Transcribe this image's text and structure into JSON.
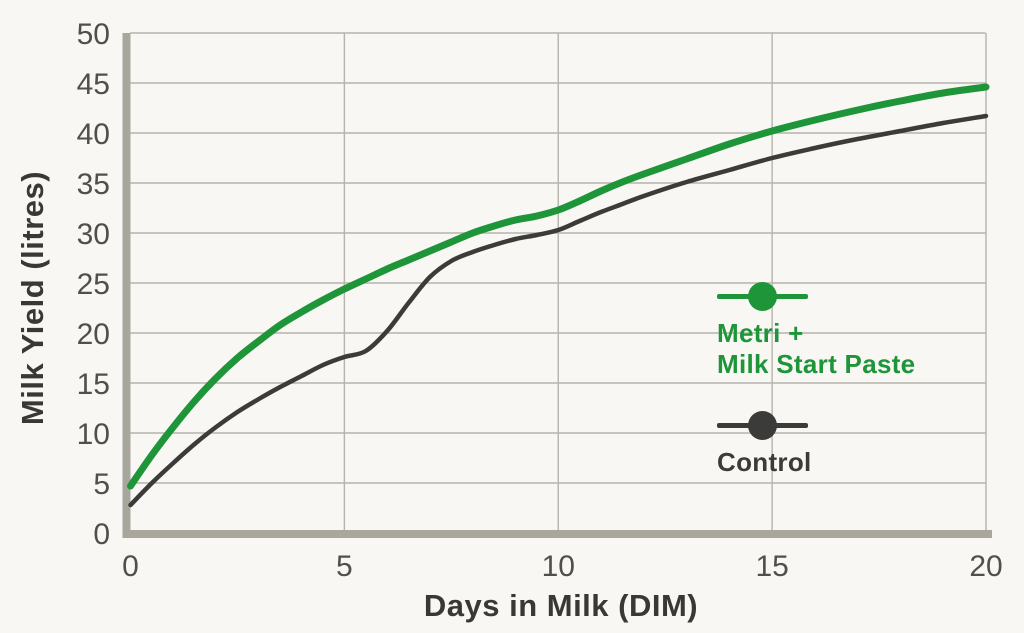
{
  "chart_data": {
    "type": "line",
    "title": "",
    "xlabel": "Days in Milk (DIM)",
    "ylabel": "Milk Yield (litres)",
    "xlim": [
      0,
      20
    ],
    "ylim": [
      0,
      50
    ],
    "x_ticks": [
      0,
      5,
      10,
      15,
      20
    ],
    "y_ticks": [
      0,
      5,
      10,
      15,
      20,
      25,
      30,
      35,
      40,
      45,
      50
    ],
    "grid": true,
    "legend_position": "inside-right",
    "series": [
      {
        "name": "Metri + Milk Start Paste",
        "label_lines": [
          "Metri +",
          "Milk Start Paste"
        ],
        "color": "#1E9539",
        "stroke_width": 7,
        "x": [
          0,
          0.5,
          1,
          1.5,
          2,
          2.5,
          3,
          3.5,
          4,
          4.5,
          5,
          5.5,
          6,
          6.5,
          7,
          7.5,
          8,
          8.5,
          9,
          9.5,
          10,
          10.5,
          11,
          11.5,
          12,
          13,
          14,
          15,
          16,
          17,
          18,
          19,
          20
        ],
        "y": [
          4.7,
          7.8,
          10.6,
          13.2,
          15.5,
          17.5,
          19.2,
          20.8,
          22.1,
          23.3,
          24.4,
          25.4,
          26.4,
          27.3,
          28.2,
          29.1,
          30.0,
          30.7,
          31.3,
          31.7,
          32.3,
          33.2,
          34.2,
          35.1,
          35.9,
          37.4,
          38.9,
          40.2,
          41.3,
          42.3,
          43.2,
          44.0,
          44.6
        ]
      },
      {
        "name": "Control",
        "label_lines": [
          "Control"
        ],
        "color": "#3B3B39",
        "stroke_width": 4.5,
        "x": [
          0,
          0.5,
          1,
          1.5,
          2,
          2.5,
          3,
          3.5,
          4,
          4.5,
          5,
          5.5,
          6,
          6.5,
          7,
          7.5,
          8,
          8.5,
          9,
          9.5,
          10,
          10.5,
          11,
          11.5,
          12,
          13,
          14,
          15,
          16,
          17,
          18,
          19,
          20
        ],
        "y": [
          2.8,
          5.0,
          7.0,
          8.9,
          10.6,
          12.1,
          13.4,
          14.6,
          15.7,
          16.8,
          17.6,
          18.2,
          20.2,
          23.0,
          25.6,
          27.2,
          28.1,
          28.8,
          29.4,
          29.8,
          30.3,
          31.2,
          32.1,
          32.9,
          33.7,
          35.1,
          36.3,
          37.5,
          38.5,
          39.4,
          40.2,
          41.0,
          41.7
        ]
      }
    ],
    "style": {
      "background": "#F8F7F4",
      "grid_color": "#B5B3AB",
      "spine_color": "#A9A69B",
      "tick_color": "#524F4B",
      "title_color": "#3B3833"
    }
  }
}
